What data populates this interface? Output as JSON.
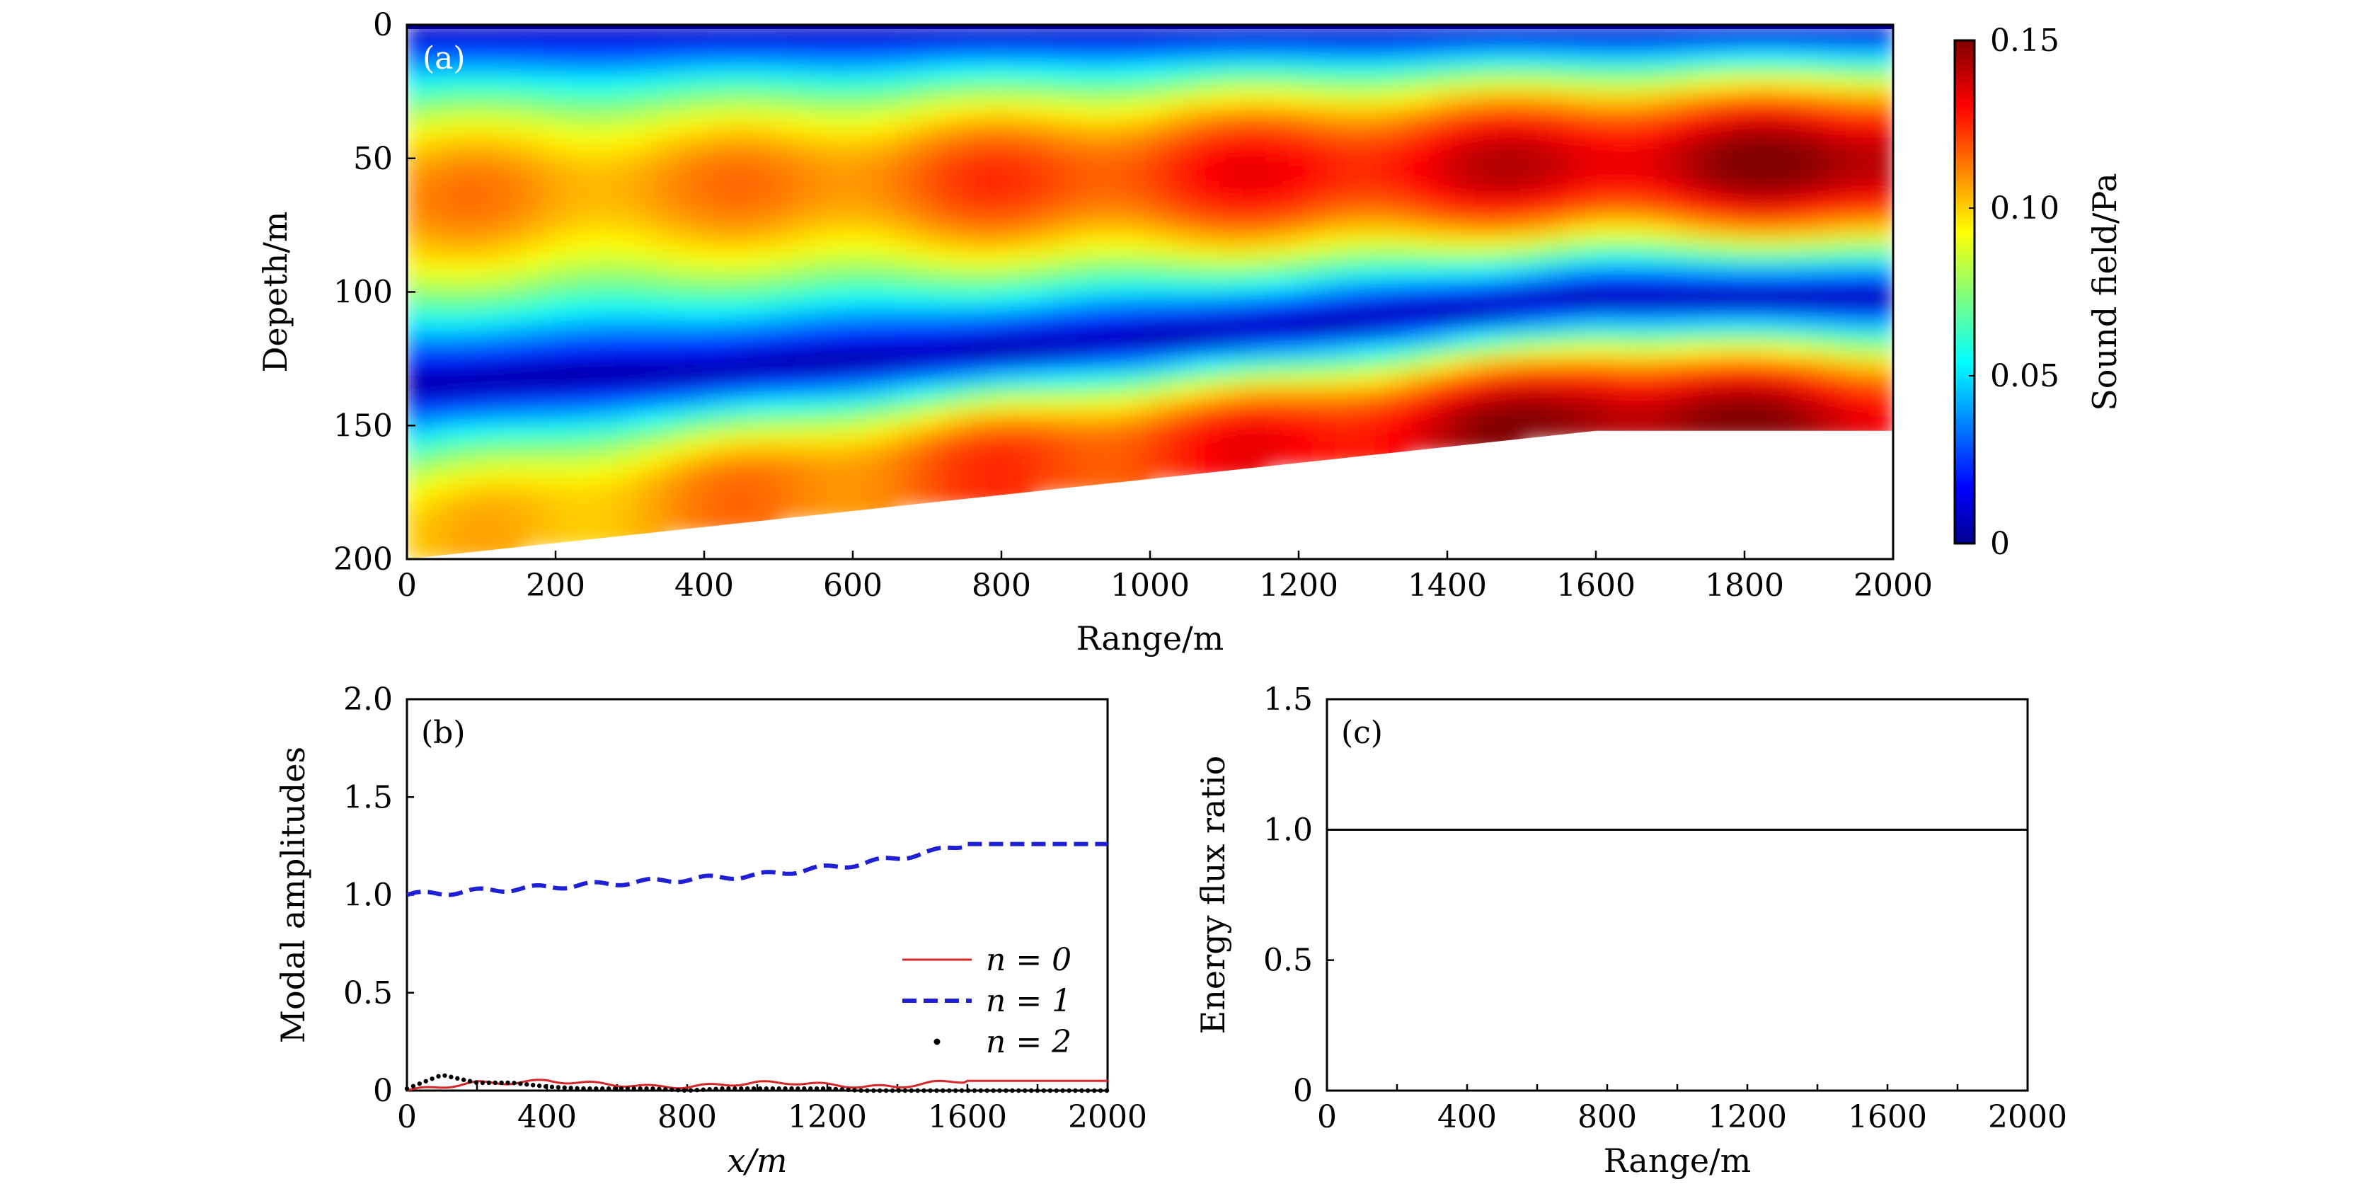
{
  "chart_data": [
    {
      "panel": "(a)",
      "type": "heatmap",
      "title": "",
      "xlabel": "Range/m",
      "ylabel": "Depeth/m",
      "xlim": [
        0,
        2000
      ],
      "ylim": [
        200,
        0
      ],
      "xticks": [
        "0",
        "200",
        "400",
        "600",
        "800",
        "1000",
        "1200",
        "1400",
        "1600",
        "1800",
        "2000"
      ],
      "yticks": [
        "0",
        "50",
        "100",
        "150",
        "200"
      ],
      "colorbar": {
        "label": "Sound field/Pa",
        "range": [
          0,
          0.15
        ],
        "ticks": [
          "0",
          "0.05",
          "0.10",
          "0.15"
        ],
        "colormap": "jet"
      },
      "bottom_profile": {
        "description_points_range_m": [
          0,
          1600,
          2000
        ],
        "depth_m": [
          200,
          152,
          152
        ]
      },
      "field_description": {
        "mode1_peak_depth_m": [
          65,
          60,
          58,
          55,
          52,
          52
        ],
        "mode1_peak_range_m": [
          0,
          400,
          800,
          1200,
          1600,
          2000
        ],
        "mode1_peak_value_pa": [
          0.11,
          0.11,
          0.12,
          0.13,
          0.14,
          0.15
        ],
        "node_depth_m": [
          135,
          130,
          122,
          113,
          102,
          102
        ],
        "node_range_m": [
          0,
          400,
          800,
          1200,
          1600,
          2000
        ],
        "lower_lobe_peak_depth_m": [
          190,
          175,
          162,
          155,
          148,
          150
        ],
        "lower_lobe_peak_value_pa": [
          0.1,
          0.11,
          0.12,
          0.13,
          0.15,
          0.14
        ]
      }
    },
    {
      "panel": "(b)",
      "type": "line",
      "title": "",
      "xlabel": "x/m",
      "ylabel": "Modal amplitudes",
      "xlim": [
        0,
        2000
      ],
      "ylim": [
        0,
        2.0
      ],
      "xticks": [
        "0",
        "400",
        "800",
        "1200",
        "1600",
        "2000"
      ],
      "yticks": [
        "0",
        "0.5",
        "1.0",
        "1.5",
        "2.0"
      ],
      "legend_position": "lower-right",
      "legend": [
        "n = 0",
        "n = 1",
        "n = 2"
      ],
      "x": [
        0,
        100,
        200,
        300,
        400,
        500,
        600,
        700,
        800,
        900,
        1000,
        1100,
        1200,
        1300,
        1400,
        1500,
        1600,
        1700,
        1800,
        1900,
        2000
      ],
      "series": [
        {
          "name": "n = 0",
          "color": "#d62728",
          "style": "solid",
          "values": [
            0.0,
            0.02,
            0.04,
            0.04,
            0.05,
            0.04,
            0.03,
            0.02,
            0.02,
            0.03,
            0.04,
            0.04,
            0.03,
            0.02,
            0.02,
            0.04,
            0.05,
            0.05,
            0.05,
            0.05,
            0.05
          ]
        },
        {
          "name": "n = 1",
          "color": "#1f1fd6",
          "style": "dashed",
          "values": [
            1.0,
            1.01,
            1.02,
            1.03,
            1.04,
            1.05,
            1.06,
            1.07,
            1.08,
            1.09,
            1.1,
            1.12,
            1.14,
            1.16,
            1.19,
            1.22,
            1.26,
            1.26,
            1.26,
            1.26,
            1.26
          ]
        },
        {
          "name": "n = 2",
          "color": "#000000",
          "style": "dotted",
          "values": [
            0.01,
            0.08,
            0.04,
            0.04,
            0.02,
            0.01,
            0.01,
            0.01,
            0.0,
            0.01,
            0.01,
            0.01,
            0.01,
            0.0,
            0.0,
            0.0,
            0.0,
            0.0,
            0.0,
            0.0,
            0.0
          ]
        }
      ]
    },
    {
      "panel": "(c)",
      "type": "line",
      "title": "",
      "xlabel": "Range/m",
      "ylabel": "Energy flux ratio",
      "xlim": [
        0,
        2000
      ],
      "ylim": [
        0,
        1.5
      ],
      "xticks": [
        "0",
        "400",
        "800",
        "1200",
        "1600",
        "2000"
      ],
      "yticks": [
        "0",
        "0.5",
        "1.0",
        "1.5"
      ],
      "x": [
        0,
        2000
      ],
      "series": [
        {
          "color": "#000000",
          "style": "solid",
          "values": [
            1.0,
            1.0
          ]
        }
      ]
    }
  ]
}
